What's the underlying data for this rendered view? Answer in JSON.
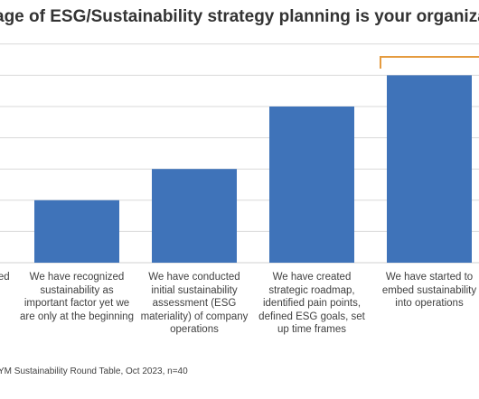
{
  "chart_data": {
    "type": "bar",
    "title": "age of ESG/Sustainability strategy planning is your organization?",
    "xlabel": "",
    "ylabel": "",
    "categories": [
      "red",
      "We have recognized sustainability as important factor yet we are only at the beginning",
      "We have conducted initial sustainability assessment (ESG materiality) of company operations",
      "We have created strategic roadmap, identified pain points, defined ESG goals, set up time frames",
      "We have started to embed sustainability into operations"
    ],
    "values": [
      0,
      2,
      3,
      5,
      6
    ],
    "ylim": [
      0,
      7
    ],
    "grid": true,
    "legend": "none",
    "highlight_bracket_category": 4,
    "colors": {
      "bar": "#3f73b9",
      "grid": "#d9d9d9",
      "bracket": "#e59b3f"
    },
    "source": "YM Sustainability Round Table, Oct 2023, n=40"
  }
}
